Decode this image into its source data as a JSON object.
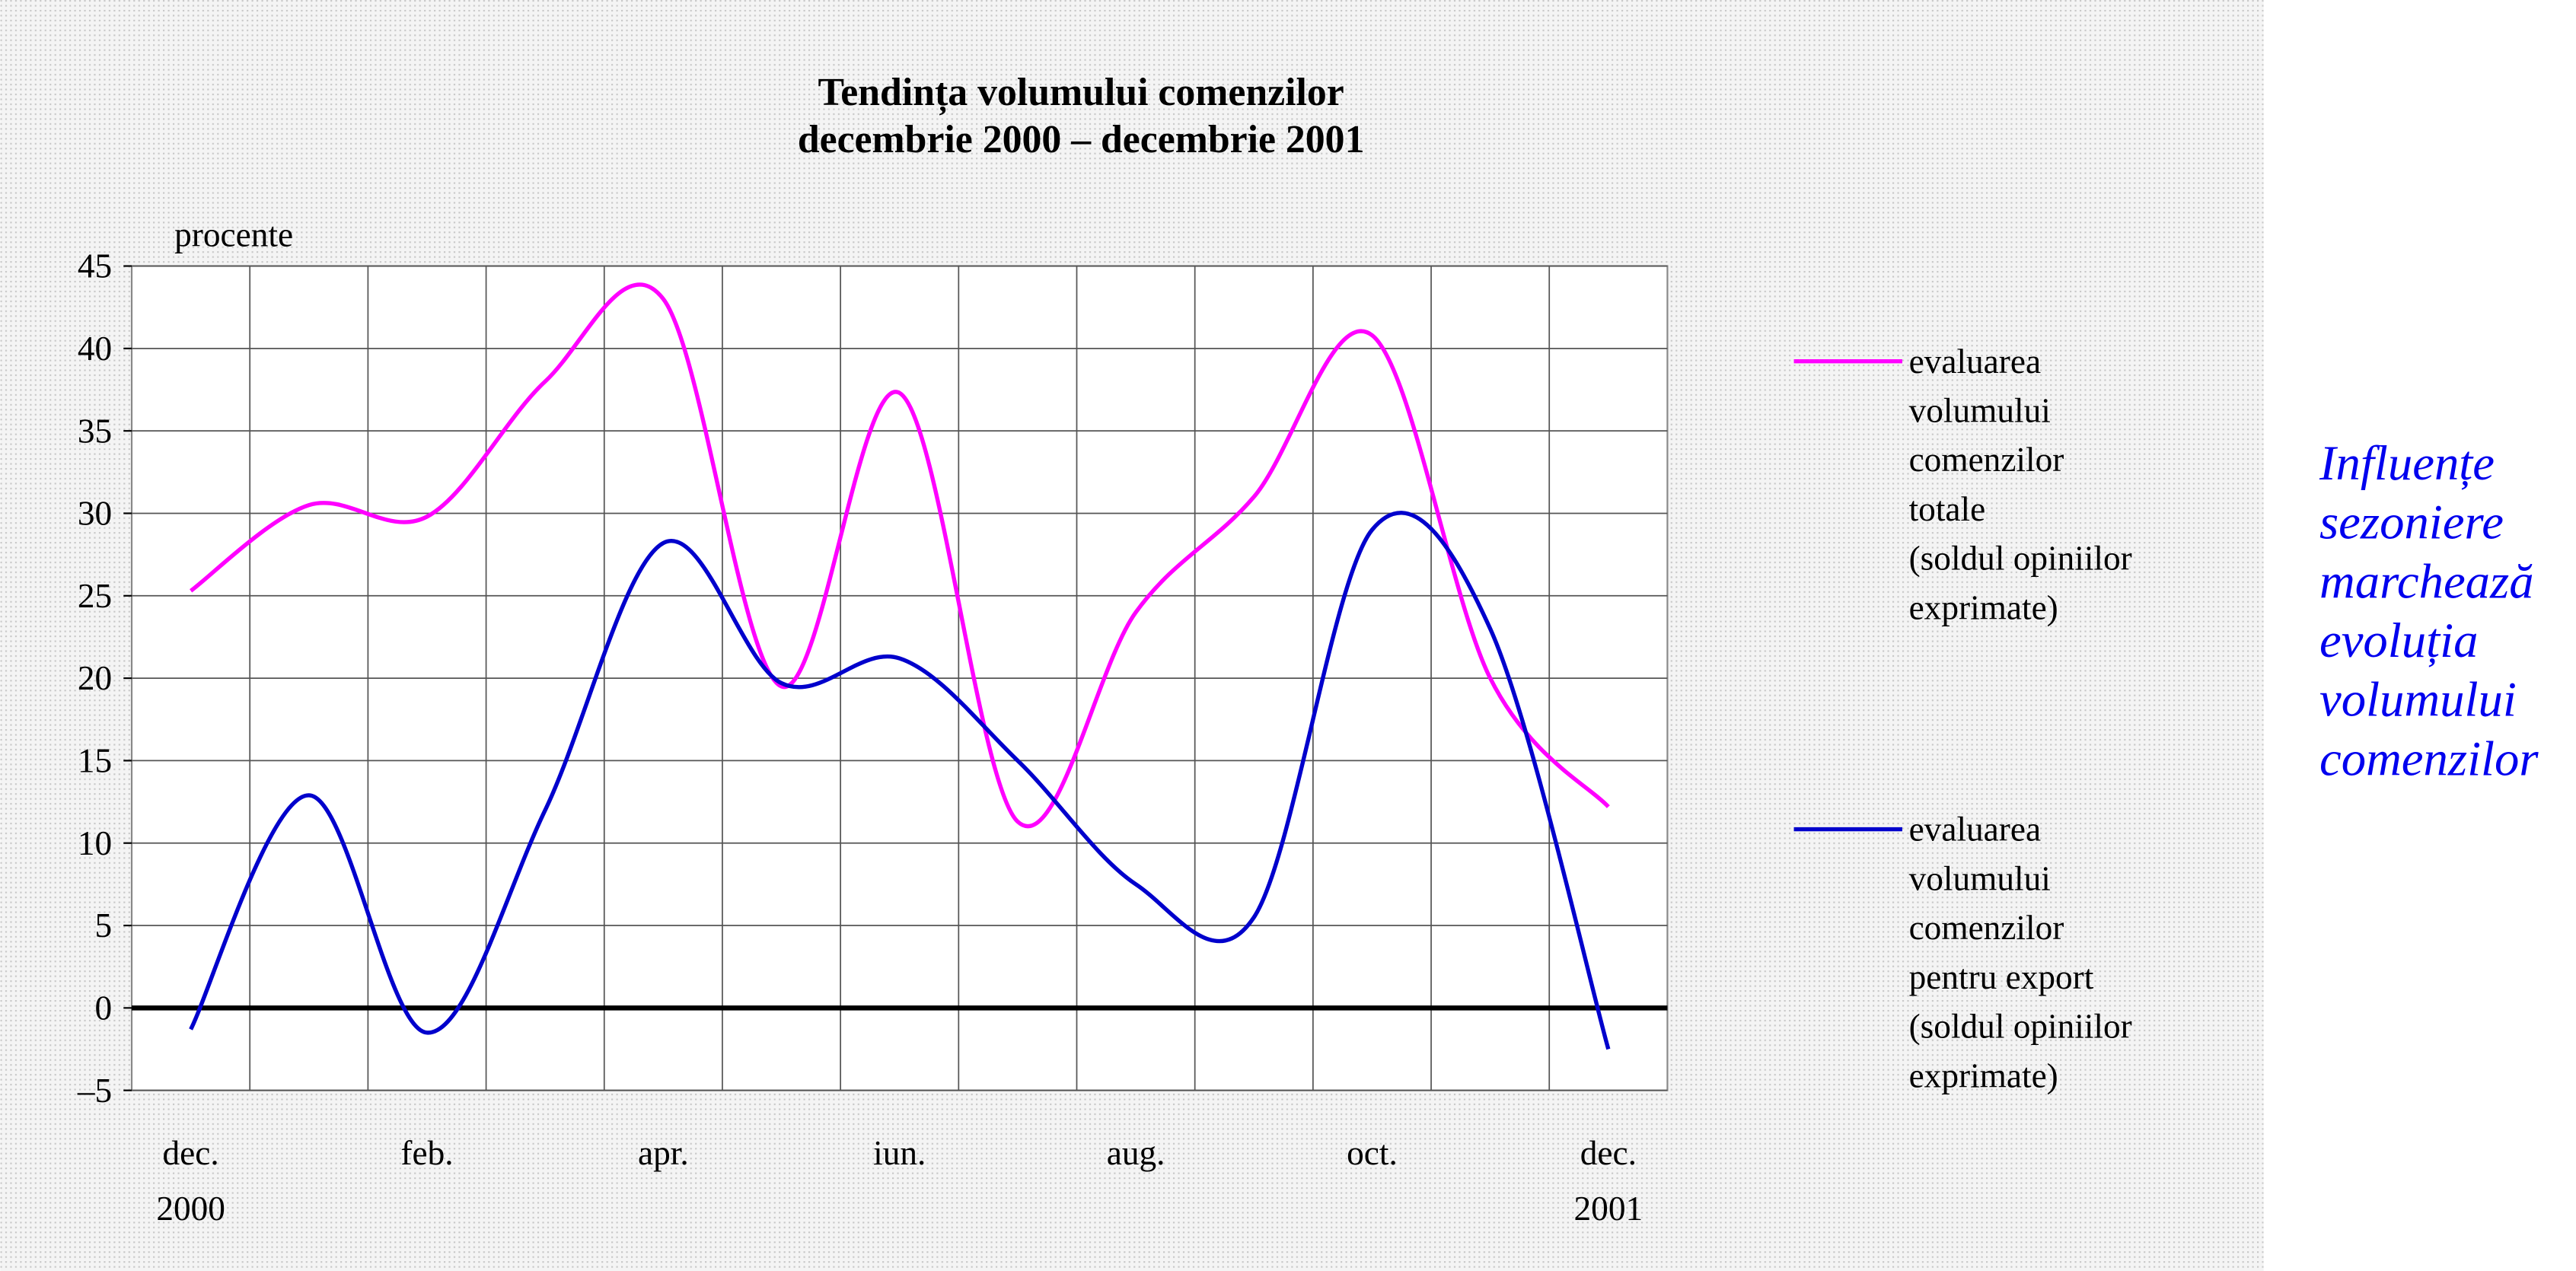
{
  "chart_data": {
    "type": "line",
    "title": "Tendința volumului comenzilor\ndecembrie 2000 – decembrie 2001",
    "ylabel": "procente",
    "categories": [
      "dec.\n2000",
      null,
      "feb.",
      null,
      "apr.",
      null,
      "iun.",
      null,
      "aug.",
      null,
      "oct.",
      null,
      "dec.\n2001"
    ],
    "series": [
      {
        "name": "evaluarea\nvolumului\ncomenzilor\ntotale\n(soldul opiniilor\nexprimate)",
        "color": "#ff00ff",
        "values": [
          25.3,
          30.5,
          29.8,
          38,
          43,
          19.5,
          37.3,
          11.3,
          24,
          31,
          40.8,
          20,
          12.2
        ]
      },
      {
        "name": "evaluarea\nvolumului\ncomenzilor\npentru export\n(soldul opiniilor\nexprimate)",
        "color": "#0000cc",
        "values": [
          -1.3,
          12.9,
          -1.5,
          12,
          28.2,
          19.7,
          21.2,
          15,
          7.5,
          5.5,
          29,
          23,
          -2.5
        ]
      }
    ],
    "ylim": [
      -5,
      45
    ],
    "yticks": [
      {
        "value": -5,
        "label": "–5"
      },
      0,
      5,
      10,
      15,
      20,
      25,
      30,
      35,
      40,
      45
    ],
    "grid": true,
    "legend": "right",
    "annotation": "Influențe\nsezoniere\nmarchează\nevoluția\nvolumului\ncomenzilor"
  }
}
